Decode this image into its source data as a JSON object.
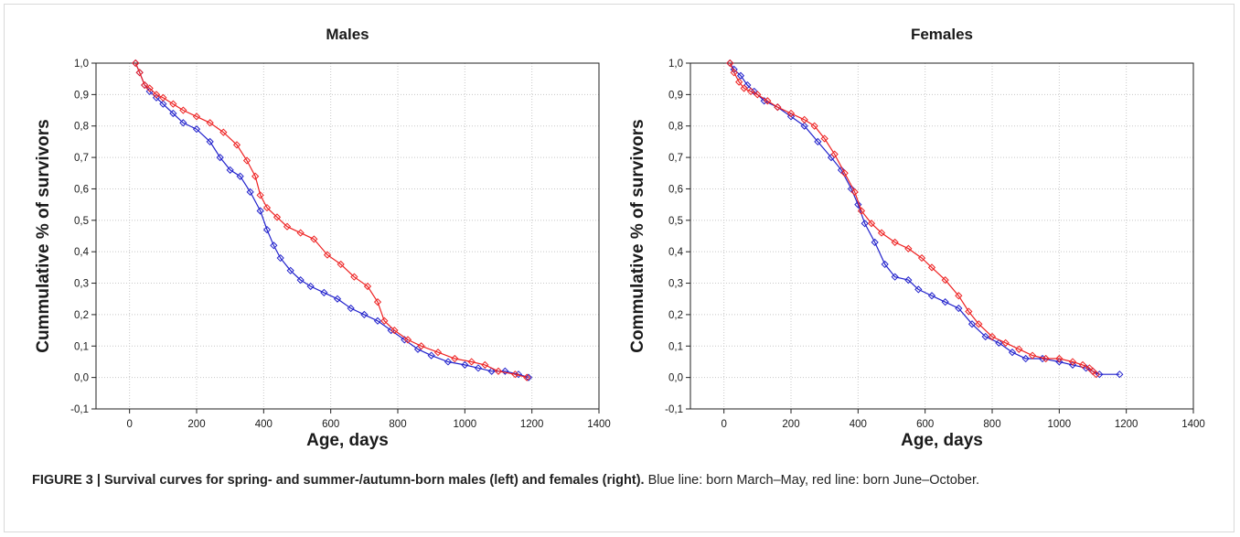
{
  "chart_data": [
    {
      "type": "line",
      "title": "Males",
      "xlabel": "Age, days",
      "ylabel": "Cummulative % of survivors",
      "xlim": [
        -100,
        1400
      ],
      "ylim": [
        -0.1,
        1.0
      ],
      "xticks": [
        "0",
        "200",
        "400",
        "600",
        "800",
        "1000",
        "1200",
        "1400"
      ],
      "yticks": [
        "-0,1",
        "0,0",
        "0,1",
        "0,2",
        "0,3",
        "0,4",
        "0,5",
        "0,6",
        "0,7",
        "0,8",
        "0,9",
        "1,0"
      ],
      "grid": true,
      "series": [
        {
          "color": "#2222cc",
          "points": [
            [
              18,
              1.0
            ],
            [
              30,
              0.97
            ],
            [
              45,
              0.93
            ],
            [
              60,
              0.91
            ],
            [
              80,
              0.89
            ],
            [
              100,
              0.87
            ],
            [
              130,
              0.84
            ],
            [
              160,
              0.81
            ],
            [
              200,
              0.79
            ],
            [
              240,
              0.75
            ],
            [
              270,
              0.7
            ],
            [
              300,
              0.66
            ],
            [
              330,
              0.64
            ],
            [
              360,
              0.59
            ],
            [
              390,
              0.53
            ],
            [
              410,
              0.47
            ],
            [
              430,
              0.42
            ],
            [
              450,
              0.38
            ],
            [
              480,
              0.34
            ],
            [
              510,
              0.31
            ],
            [
              540,
              0.29
            ],
            [
              580,
              0.27
            ],
            [
              620,
              0.25
            ],
            [
              660,
              0.22
            ],
            [
              700,
              0.2
            ],
            [
              740,
              0.18
            ],
            [
              780,
              0.15
            ],
            [
              820,
              0.12
            ],
            [
              860,
              0.09
            ],
            [
              900,
              0.07
            ],
            [
              950,
              0.05
            ],
            [
              1000,
              0.04
            ],
            [
              1040,
              0.03
            ],
            [
              1080,
              0.02
            ],
            [
              1120,
              0.02
            ],
            [
              1160,
              0.01
            ],
            [
              1190,
              0.0
            ]
          ]
        },
        {
          "color": "#ee2222",
          "points": [
            [
              18,
              1.0
            ],
            [
              30,
              0.97
            ],
            [
              45,
              0.93
            ],
            [
              60,
              0.92
            ],
            [
              80,
              0.9
            ],
            [
              100,
              0.89
            ],
            [
              130,
              0.87
            ],
            [
              160,
              0.85
            ],
            [
              200,
              0.83
            ],
            [
              240,
              0.81
            ],
            [
              280,
              0.78
            ],
            [
              320,
              0.74
            ],
            [
              350,
              0.69
            ],
            [
              375,
              0.64
            ],
            [
              390,
              0.58
            ],
            [
              410,
              0.54
            ],
            [
              440,
              0.51
            ],
            [
              470,
              0.48
            ],
            [
              510,
              0.46
            ],
            [
              550,
              0.44
            ],
            [
              590,
              0.39
            ],
            [
              630,
              0.36
            ],
            [
              670,
              0.32
            ],
            [
              710,
              0.29
            ],
            [
              740,
              0.24
            ],
            [
              760,
              0.18
            ],
            [
              790,
              0.15
            ],
            [
              830,
              0.12
            ],
            [
              870,
              0.1
            ],
            [
              920,
              0.08
            ],
            [
              970,
              0.06
            ],
            [
              1020,
              0.05
            ],
            [
              1060,
              0.04
            ],
            [
              1100,
              0.02
            ],
            [
              1150,
              0.01
            ],
            [
              1185,
              0.0
            ]
          ]
        }
      ]
    },
    {
      "type": "line",
      "title": "Females",
      "xlabel": "Age, days",
      "ylabel": "Commulative % of survivors",
      "xlim": [
        -100,
        1400
      ],
      "ylim": [
        -0.1,
        1.0
      ],
      "xticks": [
        "0",
        "200",
        "400",
        "600",
        "800",
        "1000",
        "1200",
        "1400"
      ],
      "yticks": [
        "-0,1",
        "0,0",
        "0,1",
        "0,2",
        "0,3",
        "0,4",
        "0,5",
        "0,6",
        "0,7",
        "0,8",
        "0,9",
        "1,0"
      ],
      "grid": true,
      "series": [
        {
          "color": "#2222cc",
          "points": [
            [
              18,
              1.0
            ],
            [
              30,
              0.98
            ],
            [
              50,
              0.96
            ],
            [
              70,
              0.93
            ],
            [
              90,
              0.91
            ],
            [
              120,
              0.88
            ],
            [
              160,
              0.86
            ],
            [
              200,
              0.83
            ],
            [
              240,
              0.8
            ],
            [
              280,
              0.75
            ],
            [
              320,
              0.7
            ],
            [
              350,
              0.66
            ],
            [
              380,
              0.6
            ],
            [
              400,
              0.55
            ],
            [
              420,
              0.49
            ],
            [
              450,
              0.43
            ],
            [
              480,
              0.36
            ],
            [
              510,
              0.32
            ],
            [
              550,
              0.31
            ],
            [
              580,
              0.28
            ],
            [
              620,
              0.26
            ],
            [
              660,
              0.24
            ],
            [
              700,
              0.22
            ],
            [
              740,
              0.17
            ],
            [
              780,
              0.13
            ],
            [
              820,
              0.11
            ],
            [
              860,
              0.08
            ],
            [
              900,
              0.06
            ],
            [
              950,
              0.06
            ],
            [
              1000,
              0.05
            ],
            [
              1040,
              0.04
            ],
            [
              1080,
              0.03
            ],
            [
              1100,
              0.02
            ],
            [
              1120,
              0.01
            ],
            [
              1180,
              0.01
            ]
          ]
        },
        {
          "color": "#ee2222",
          "points": [
            [
              18,
              1.0
            ],
            [
              30,
              0.97
            ],
            [
              45,
              0.94
            ],
            [
              60,
              0.92
            ],
            [
              80,
              0.91
            ],
            [
              100,
              0.9
            ],
            [
              130,
              0.88
            ],
            [
              160,
              0.86
            ],
            [
              200,
              0.84
            ],
            [
              240,
              0.82
            ],
            [
              270,
              0.8
            ],
            [
              300,
              0.76
            ],
            [
              330,
              0.71
            ],
            [
              360,
              0.65
            ],
            [
              390,
              0.59
            ],
            [
              410,
              0.53
            ],
            [
              440,
              0.49
            ],
            [
              470,
              0.46
            ],
            [
              510,
              0.43
            ],
            [
              550,
              0.41
            ],
            [
              590,
              0.38
            ],
            [
              620,
              0.35
            ],
            [
              660,
              0.31
            ],
            [
              700,
              0.26
            ],
            [
              730,
              0.21
            ],
            [
              760,
              0.17
            ],
            [
              800,
              0.13
            ],
            [
              840,
              0.11
            ],
            [
              880,
              0.09
            ],
            [
              920,
              0.07
            ],
            [
              960,
              0.06
            ],
            [
              1000,
              0.06
            ],
            [
              1040,
              0.05
            ],
            [
              1070,
              0.04
            ],
            [
              1090,
              0.03
            ],
            [
              1100,
              0.02
            ],
            [
              1110,
              0.01
            ]
          ]
        }
      ]
    }
  ],
  "caption": {
    "bold": "FIGURE 3 | Survival curves for spring- and summer-/autumn-born males (left) and females (right).",
    "text": " Blue line: born March–May, red line: born June–October."
  }
}
